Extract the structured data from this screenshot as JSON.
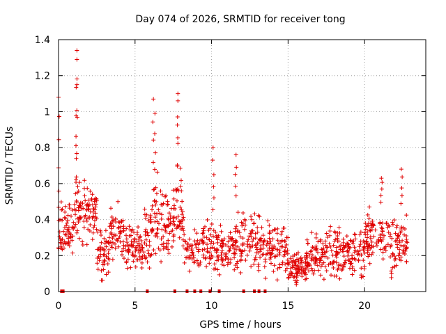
{
  "chart_data": {
    "type": "scatter",
    "title": "Day 074 of 2026, SRMTID for receiver tong",
    "xlabel": "GPS time / hours",
    "ylabel": "SRMTID / TECUs",
    "xlim": [
      0,
      24
    ],
    "ylim": [
      0,
      1.4
    ],
    "xticks": [
      0,
      5,
      10,
      15,
      20
    ],
    "xtick_labels": [
      "0",
      "5",
      "10",
      "15",
      "20"
    ],
    "yticks": [
      0,
      0.2,
      0.4,
      0.6,
      0.8,
      1.0,
      1.2,
      1.4
    ],
    "ytick_labels": [
      "0",
      "0.2",
      "0.4",
      "0.6",
      "0.8",
      "1",
      "1.2",
      "1.4"
    ],
    "grid": true,
    "marker": "+",
    "color": "#e00000",
    "gap_markers_x": [
      0.2,
      0.3,
      5.8,
      7.6,
      8.4,
      8.9,
      9.3,
      9.9,
      10.5,
      12.1,
      12.8,
      13.1,
      13.5
    ],
    "peaks": [
      {
        "x": 0.0,
        "y": 1.08
      },
      {
        "x": 1.2,
        "y": 1.34
      },
      {
        "x": 1.2,
        "y": 1.29
      },
      {
        "x": 1.2,
        "y": 1.15
      },
      {
        "x": 6.2,
        "y": 1.07
      },
      {
        "x": 6.3,
        "y": 0.99
      },
      {
        "x": 7.8,
        "y": 1.1
      },
      {
        "x": 7.8,
        "y": 1.06
      },
      {
        "x": 10.1,
        "y": 0.8
      },
      {
        "x": 11.6,
        "y": 0.76
      },
      {
        "x": 21.1,
        "y": 0.63
      },
      {
        "x": 22.4,
        "y": 0.68
      }
    ],
    "segments": [
      {
        "x0": 0.0,
        "x1": 1.0,
        "mean": 0.36,
        "spread": 0.12,
        "n": 65
      },
      {
        "x0": 1.0,
        "x1": 2.5,
        "mean": 0.44,
        "spread": 0.14,
        "n": 95
      },
      {
        "x0": 2.5,
        "x1": 3.3,
        "mean": 0.22,
        "spread": 0.12,
        "n": 50
      },
      {
        "x0": 3.3,
        "x1": 4.3,
        "mean": 0.33,
        "spread": 0.12,
        "n": 60
      },
      {
        "x0": 4.3,
        "x1": 5.6,
        "mean": 0.24,
        "spread": 0.1,
        "n": 75
      },
      {
        "x0": 5.6,
        "x1": 6.4,
        "mean": 0.38,
        "spread": 0.18,
        "n": 50
      },
      {
        "x0": 6.4,
        "x1": 7.3,
        "mean": 0.4,
        "spread": 0.17,
        "n": 55
      },
      {
        "x0": 7.3,
        "x1": 8.2,
        "mean": 0.42,
        "spread": 0.2,
        "n": 55
      },
      {
        "x0": 8.2,
        "x1": 9.2,
        "mean": 0.24,
        "spread": 0.09,
        "n": 45
      },
      {
        "x0": 9.2,
        "x1": 10.4,
        "mean": 0.24,
        "spread": 0.14,
        "n": 65
      },
      {
        "x0": 10.4,
        "x1": 11.5,
        "mean": 0.22,
        "spread": 0.1,
        "n": 60
      },
      {
        "x0": 11.5,
        "x1": 12.6,
        "mean": 0.27,
        "spread": 0.13,
        "n": 60
      },
      {
        "x0": 12.6,
        "x1": 13.8,
        "mean": 0.25,
        "spread": 0.13,
        "n": 65
      },
      {
        "x0": 13.8,
        "x1": 15.0,
        "mean": 0.25,
        "spread": 0.12,
        "n": 70
      },
      {
        "x0": 15.0,
        "x1": 16.2,
        "mean": 0.13,
        "spread": 0.07,
        "n": 80
      },
      {
        "x0": 16.2,
        "x1": 17.5,
        "mean": 0.19,
        "spread": 0.1,
        "n": 80
      },
      {
        "x0": 17.5,
        "x1": 18.8,
        "mean": 0.22,
        "spread": 0.11,
        "n": 75
      },
      {
        "x0": 18.8,
        "x1": 20.0,
        "mean": 0.21,
        "spread": 0.12,
        "n": 70
      },
      {
        "x0": 20.0,
        "x1": 21.2,
        "mean": 0.31,
        "spread": 0.14,
        "n": 70
      },
      {
        "x0": 21.2,
        "x1": 22.8,
        "mean": 0.27,
        "spread": 0.12,
        "n": 85
      }
    ]
  }
}
